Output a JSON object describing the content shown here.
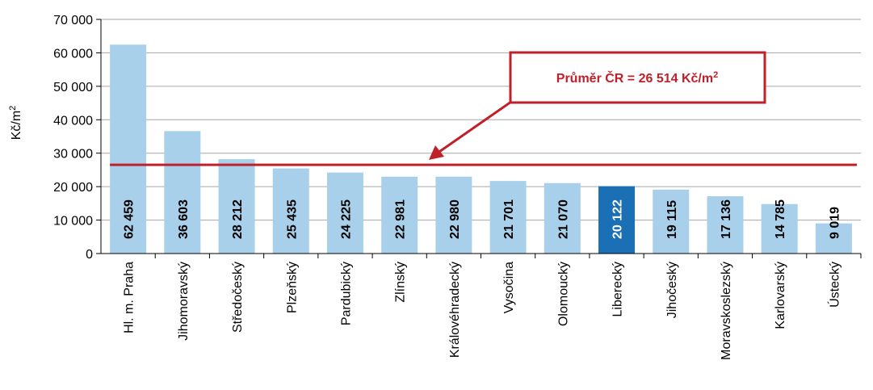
{
  "chart_data": {
    "type": "bar",
    "ylabel": "Kč/m",
    "ylabel_sup": "2",
    "ylim": [
      0,
      70000
    ],
    "yticks": [
      {
        "value": 0,
        "label": "0"
      },
      {
        "value": 10000,
        "label": "10 000"
      },
      {
        "value": 20000,
        "label": "20 000"
      },
      {
        "value": 30000,
        "label": "30 000"
      },
      {
        "value": 40000,
        "label": "40 000"
      },
      {
        "value": 50000,
        "label": "50 000"
      },
      {
        "value": 60000,
        "label": "60 000"
      },
      {
        "value": 70000,
        "label": "70 000"
      }
    ],
    "categories": [
      "Hl. m. Praha",
      "Jihomoravský",
      "Středočeský",
      "Plzeňský",
      "Pardubický",
      "Zlínský",
      "Královéhradecký",
      "Vysočina",
      "Olomoucký",
      "Liberecký",
      "Jihočeský",
      "Moravskoslezský",
      "Karlovarský",
      "Ústecký"
    ],
    "values": [
      62459,
      36603,
      28212,
      25435,
      24225,
      22981,
      22980,
      21701,
      21070,
      20122,
      19115,
      17136,
      14785,
      9019
    ],
    "value_labels": [
      "62 459",
      "36 603",
      "28 212",
      "25 435",
      "24 225",
      "22 981",
      "22 980",
      "21 701",
      "21 070",
      "20 122",
      "19 115",
      "17 136",
      "14 785",
      "9 019"
    ],
    "highlight_index": 9,
    "average_line": {
      "value": 26514,
      "label": "Průměr ČR = 26 514 Kč/m",
      "label_sup": "2"
    },
    "grid": true,
    "legend": "none",
    "colors": {
      "bar": "#a9d0ea",
      "bar_highlight": "#1a6fb5",
      "average_line": "#c0202a",
      "grid": "#a6a6a6",
      "label_dark": "#000000",
      "label_light": "#ffffff"
    }
  }
}
